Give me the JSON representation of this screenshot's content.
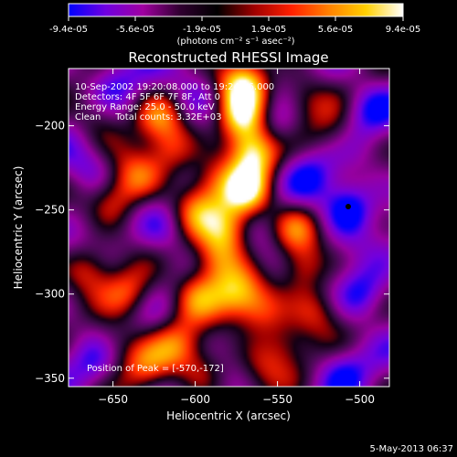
{
  "colorbar": {
    "tick_labels": [
      "-9.4e-05",
      "-5.6e-05",
      "-1.9e-05",
      "1.9e-05",
      "5.6e-05",
      "9.4e-05"
    ],
    "unit_label": "(photons cm⁻² s⁻¹ asec⁻²)",
    "stops": [
      "#0000ff",
      "#7000e0",
      "#a000a0",
      "#300030",
      "#000000",
      "#a00000",
      "#ff2000",
      "#ff8000",
      "#ffd000",
      "#ffffff"
    ]
  },
  "chart_data": {
    "type": "heatmap",
    "title": "Reconstructed RHESSI Image",
    "xlabel": "Heliocentric X (arcsec)",
    "ylabel": "Heliocentric Y (arcsec)",
    "xlim": [
      -677,
      -482
    ],
    "ylim": [
      -355,
      -166
    ],
    "x_ticks": [
      -650,
      -600,
      -550,
      -500
    ],
    "y_ticks": [
      -350,
      -300,
      -250,
      -200
    ],
    "x_tick_labels": [
      "−650",
      "−600",
      "−550",
      "−500"
    ],
    "y_tick_labels": [
      "−350",
      "−300",
      "−250",
      "−200"
    ],
    "value_range": [
      -9.4e-05,
      9.4e-05
    ],
    "annotations": [
      "10-Sep-2002 19:20:08.000 to 19:24:16.000",
      "Detectors: 4F 5F 6F 7F 8F, Att 0",
      "Energy Range: 25.0 - 50.0 keV",
      "Clean     Total counts: 3.32E+03"
    ],
    "peak_label": "Position of Peak = [-570,-172]",
    "peak_position": [
      -570,
      -172
    ],
    "marker_position": [
      -507,
      -248
    ],
    "sources": [
      {
        "x": -570,
        "y": -175,
        "intensity": 1.0
      },
      {
        "x": -572,
        "y": -195,
        "intensity": 0.95
      },
      {
        "x": -565,
        "y": -215,
        "intensity": 0.95
      },
      {
        "x": -568,
        "y": -240,
        "intensity": 0.9
      },
      {
        "x": -580,
        "y": -262,
        "intensity": 0.8
      },
      {
        "x": -588,
        "y": -280,
        "intensity": 0.7
      },
      {
        "x": -575,
        "y": -300,
        "intensity": 0.65
      },
      {
        "x": -560,
        "y": -310,
        "intensity": 0.6
      },
      {
        "x": -600,
        "y": -300,
        "intensity": 0.6
      },
      {
        "x": -610,
        "y": -330,
        "intensity": 0.55
      },
      {
        "x": -630,
        "y": -345,
        "intensity": 0.5
      },
      {
        "x": -650,
        "y": -330,
        "intensity": 0.45
      },
      {
        "x": -640,
        "y": -300,
        "intensity": 0.55
      },
      {
        "x": -665,
        "y": -285,
        "intensity": 0.5
      },
      {
        "x": -650,
        "y": -245,
        "intensity": 0.55
      },
      {
        "x": -635,
        "y": -230,
        "intensity": 0.6
      },
      {
        "x": -615,
        "y": -215,
        "intensity": 0.55
      },
      {
        "x": -622,
        "y": -195,
        "intensity": 0.5
      },
      {
        "x": -660,
        "y": -195,
        "intensity": 0.4
      },
      {
        "x": -600,
        "y": -250,
        "intensity": 0.5
      },
      {
        "x": -540,
        "y": -260,
        "intensity": 0.5
      },
      {
        "x": -535,
        "y": -285,
        "intensity": 0.55
      },
      {
        "x": -525,
        "y": -310,
        "intensity": 0.5
      },
      {
        "x": -545,
        "y": -330,
        "intensity": 0.45
      },
      {
        "x": -535,
        "y": -185,
        "intensity": 0.45
      },
      {
        "x": -515,
        "y": -205,
        "intensity": 0.35
      },
      {
        "x": -595,
        "y": -345,
        "intensity": 0.4
      },
      {
        "x": -560,
        "y": -345,
        "intensity": 0.35
      },
      {
        "x": -590,
        "y": -232,
        "intensity": 0.45
      }
    ],
    "negatives": [
      {
        "x": -507,
        "y": -248,
        "intensity": 1.0
      },
      {
        "x": -498,
        "y": -300,
        "intensity": 0.7
      },
      {
        "x": -495,
        "y": -190,
        "intensity": 0.6
      },
      {
        "x": -530,
        "y": -230,
        "intensity": 0.5
      },
      {
        "x": -548,
        "y": -200,
        "intensity": 0.5
      },
      {
        "x": -660,
        "y": -340,
        "intensity": 0.5
      },
      {
        "x": -665,
        "y": -225,
        "intensity": 0.55
      },
      {
        "x": -600,
        "y": -180,
        "intensity": 0.45
      },
      {
        "x": -620,
        "y": -260,
        "intensity": 0.45
      },
      {
        "x": -510,
        "y": -345,
        "intensity": 0.5
      },
      {
        "x": -650,
        "y": -172,
        "intensity": 0.45
      },
      {
        "x": -555,
        "y": -280,
        "intensity": 0.35
      }
    ]
  },
  "footer": {
    "date": "5-May-2013 06:37"
  }
}
